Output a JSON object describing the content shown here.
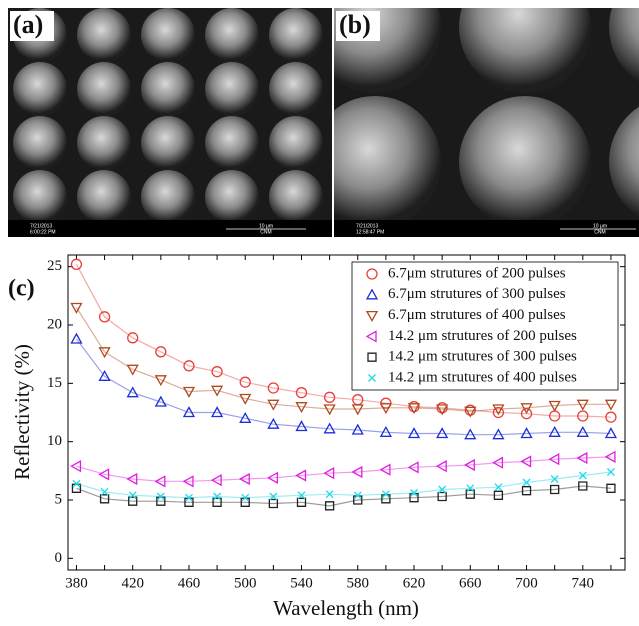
{
  "images": [
    {
      "label": "(a)",
      "info": [
        "7/21/2013",
        "6:00:22 PM",
        "10 μm",
        "CNM"
      ]
    },
    {
      "label": "(b)",
      "info": [
        "7/21/2013",
        "12:58:47 PM",
        "10 μm",
        "CNM"
      ]
    }
  ],
  "chart_data": {
    "type": "line",
    "panel_label": "(c)",
    "x_label": "Wavelength (nm)",
    "y_label": "Reflectivity (%)",
    "x": [
      380,
      400,
      420,
      440,
      460,
      480,
      500,
      520,
      540,
      560,
      580,
      600,
      620,
      640,
      660,
      680,
      700,
      720,
      740,
      760
    ],
    "xlim": [
      374,
      770
    ],
    "xticks": [
      380,
      400,
      420,
      440,
      460,
      480,
      500,
      520,
      540,
      560,
      580,
      600,
      620,
      640,
      660,
      680,
      700,
      720,
      740,
      760
    ],
    "ylim": [
      -1,
      26
    ],
    "yticks": [
      0,
      5,
      10,
      15,
      20,
      25
    ],
    "legend": "upper right",
    "series": [
      {
        "name": "6.7μm strutures of 200 pulses",
        "color": "#e8403a",
        "marker": "circle",
        "values": [
          25.2,
          20.7,
          18.9,
          17.7,
          16.5,
          16.0,
          15.1,
          14.6,
          14.2,
          13.8,
          13.6,
          13.3,
          13.0,
          12.9,
          12.7,
          12.5,
          12.4,
          12.2,
          12.2,
          12.1
        ]
      },
      {
        "name": "6.7μm strutures of 300 pulses",
        "color": "#1c2fd6",
        "marker": "triangle-up",
        "values": [
          18.8,
          15.6,
          14.2,
          13.4,
          12.5,
          12.5,
          12.0,
          11.5,
          11.3,
          11.1,
          11.0,
          10.8,
          10.7,
          10.7,
          10.6,
          10.6,
          10.7,
          10.8,
          10.8,
          10.7
        ]
      },
      {
        "name": "6.7μm strutures of 400 pulses",
        "color": "#b04a1e",
        "marker": "triangle-down",
        "values": [
          21.5,
          17.7,
          16.2,
          15.3,
          14.3,
          14.4,
          13.7,
          13.2,
          13.0,
          12.8,
          12.8,
          12.9,
          12.9,
          12.8,
          12.6,
          12.8,
          12.9,
          13.1,
          13.2,
          13.2
        ]
      },
      {
        "name": "14.2 μm strutures of 200 pulses",
        "color": "#e020e0",
        "marker": "triangle-left",
        "values": [
          7.9,
          7.2,
          6.8,
          6.6,
          6.6,
          6.7,
          6.8,
          6.9,
          7.1,
          7.3,
          7.4,
          7.6,
          7.8,
          7.9,
          8.0,
          8.2,
          8.3,
          8.5,
          8.6,
          8.7
        ]
      },
      {
        "name": "14.2 μm strutures of 300 pulses",
        "color": "#222222",
        "marker": "square",
        "values": [
          6.0,
          5.1,
          4.9,
          4.9,
          4.8,
          4.8,
          4.8,
          4.7,
          4.8,
          4.5,
          5.0,
          5.1,
          5.2,
          5.3,
          5.5,
          5.4,
          5.8,
          5.9,
          6.2,
          6.0
        ]
      },
      {
        "name": "14.2 μm strutures of 400 pulses",
        "color": "#20d8e8",
        "marker": "x",
        "values": [
          6.4,
          5.7,
          5.4,
          5.3,
          5.2,
          5.3,
          5.2,
          5.3,
          5.4,
          5.5,
          5.4,
          5.5,
          5.6,
          5.9,
          6.0,
          6.1,
          6.5,
          6.8,
          7.1,
          7.4
        ]
      }
    ]
  }
}
